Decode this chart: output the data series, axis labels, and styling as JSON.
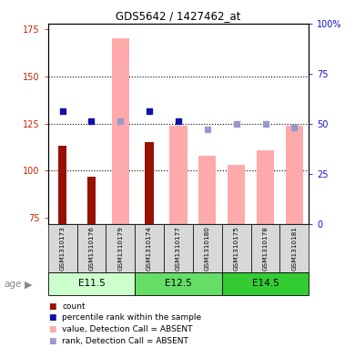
{
  "title": "GDS5642 / 1427462_at",
  "samples": [
    "GSM1310173",
    "GSM1310176",
    "GSM1310179",
    "GSM1310174",
    "GSM1310177",
    "GSM1310180",
    "GSM1310175",
    "GSM1310178",
    "GSM1310181"
  ],
  "bar_values_red": [
    113,
    97,
    null,
    115,
    null,
    null,
    null,
    null,
    null
  ],
  "bar_values_pink": [
    null,
    null,
    170,
    null,
    124,
    108,
    103,
    111,
    124
  ],
  "dots_blue_dark_pct": [
    56,
    51,
    null,
    56,
    51,
    null,
    null,
    null,
    null
  ],
  "dots_blue_light_pct": [
    null,
    null,
    51,
    null,
    null,
    47,
    50,
    50,
    48
  ],
  "ylim_left": [
    72,
    178
  ],
  "yticks_left": [
    75,
    100,
    125,
    150,
    175
  ],
  "ylim_right": [
    0,
    100
  ],
  "yticks_right": [
    0,
    25,
    50,
    75,
    100
  ],
  "ylabel_left_color": "#cc2200",
  "ylabel_right_color": "#1111cc",
  "bar_red_color": "#991100",
  "bar_pink_color": "#ffaaaa",
  "dot_blue_dark": "#1111aa",
  "dot_blue_light": "#9999cc",
  "gridline_color": "black",
  "gridline_y": [
    100,
    125,
    150
  ],
  "age_groups": [
    {
      "label": "E11.5",
      "start": 0,
      "end": 2,
      "color": "#ccffcc"
    },
    {
      "label": "E12.5",
      "start": 3,
      "end": 5,
      "color": "#66dd66"
    },
    {
      "label": "E14.5",
      "start": 6,
      "end": 8,
      "color": "#33cc33"
    }
  ],
  "legend_labels": [
    "count",
    "percentile rank within the sample",
    "value, Detection Call = ABSENT",
    "rank, Detection Call = ABSENT"
  ],
  "legend_colors": [
    "#991100",
    "#1111aa",
    "#ffaaaa",
    "#9999cc"
  ]
}
